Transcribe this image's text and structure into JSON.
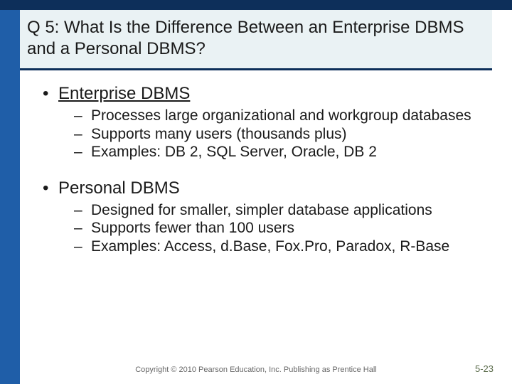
{
  "colors": {
    "sidebar": "#1f5ea8",
    "topbar": "#0d2f5a",
    "title_bg": "#eaf2f4",
    "text": "#1a1a1a",
    "footer": "#666666",
    "pagenum": "#5a6b4a"
  },
  "title": "Q 5:   What Is the Difference Between an Enterprise DBMS and a Personal DBMS?",
  "sections": [
    {
      "heading": "Enterprise DBMS",
      "underlined": true,
      "items": [
        "Processes large organizational and workgroup databases",
        "Supports many users (thousands plus)",
        "Examples: DB 2, SQL Server, Oracle, DB 2"
      ]
    },
    {
      "heading": "Personal DBMS",
      "underlined": false,
      "items": [
        "Designed for smaller, simpler database applications",
        "Supports fewer than 100 users",
        "Examples: Access, d.Base, Fox.Pro, Paradox, R-Base"
      ]
    }
  ],
  "footer": "Copyright © 2010 Pearson Education, Inc. Publishing as Prentice Hall",
  "page_number": "5-23"
}
